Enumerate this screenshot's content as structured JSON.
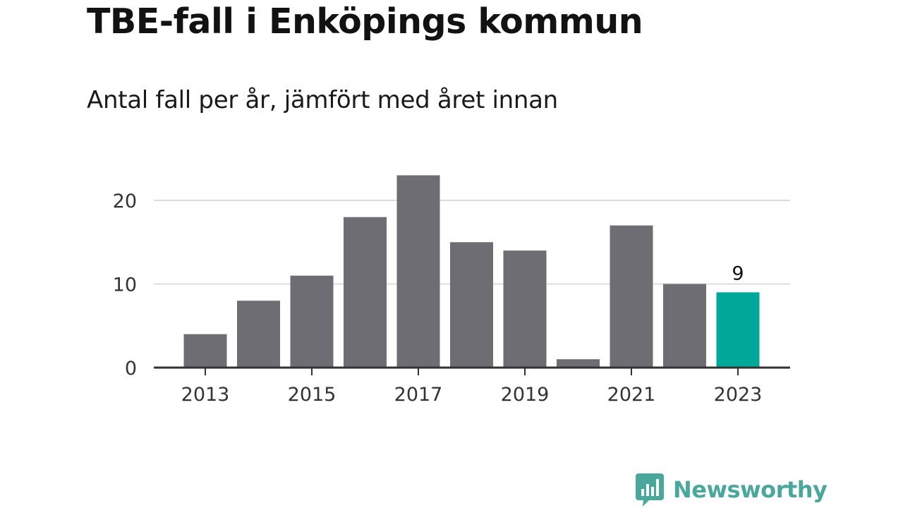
{
  "header": {
    "title": "TBE-fall i Enköpings kommun",
    "subtitle": "Antal fall per år, jämfört med året innan"
  },
  "brand": {
    "name": "Newsworthy",
    "icon": "newsworthy-logo-icon",
    "color": "#4aa79c"
  },
  "chart_data": {
    "type": "bar",
    "title": "TBE-fall i Enköpings kommun",
    "subtitle": "Antal fall per år, jämfört med året innan",
    "categories": [
      "2013",
      "2014",
      "2015",
      "2016",
      "2017",
      "2018",
      "2019",
      "2020",
      "2021",
      "2022",
      "2023"
    ],
    "values": [
      4,
      8,
      11,
      18,
      23,
      15,
      14,
      1,
      17,
      10,
      9
    ],
    "x_tick_labels": [
      "2013",
      "2015",
      "2017",
      "2019",
      "2021",
      "2023"
    ],
    "y_ticks": [
      0,
      10,
      20
    ],
    "ylim": [
      0,
      24
    ],
    "grid": true,
    "bar_color": "#6e6d74",
    "highlight_color": "#00a89a",
    "highlight_category": "2023",
    "data_labels": [
      {
        "category": "2023",
        "text": "9"
      }
    ]
  }
}
